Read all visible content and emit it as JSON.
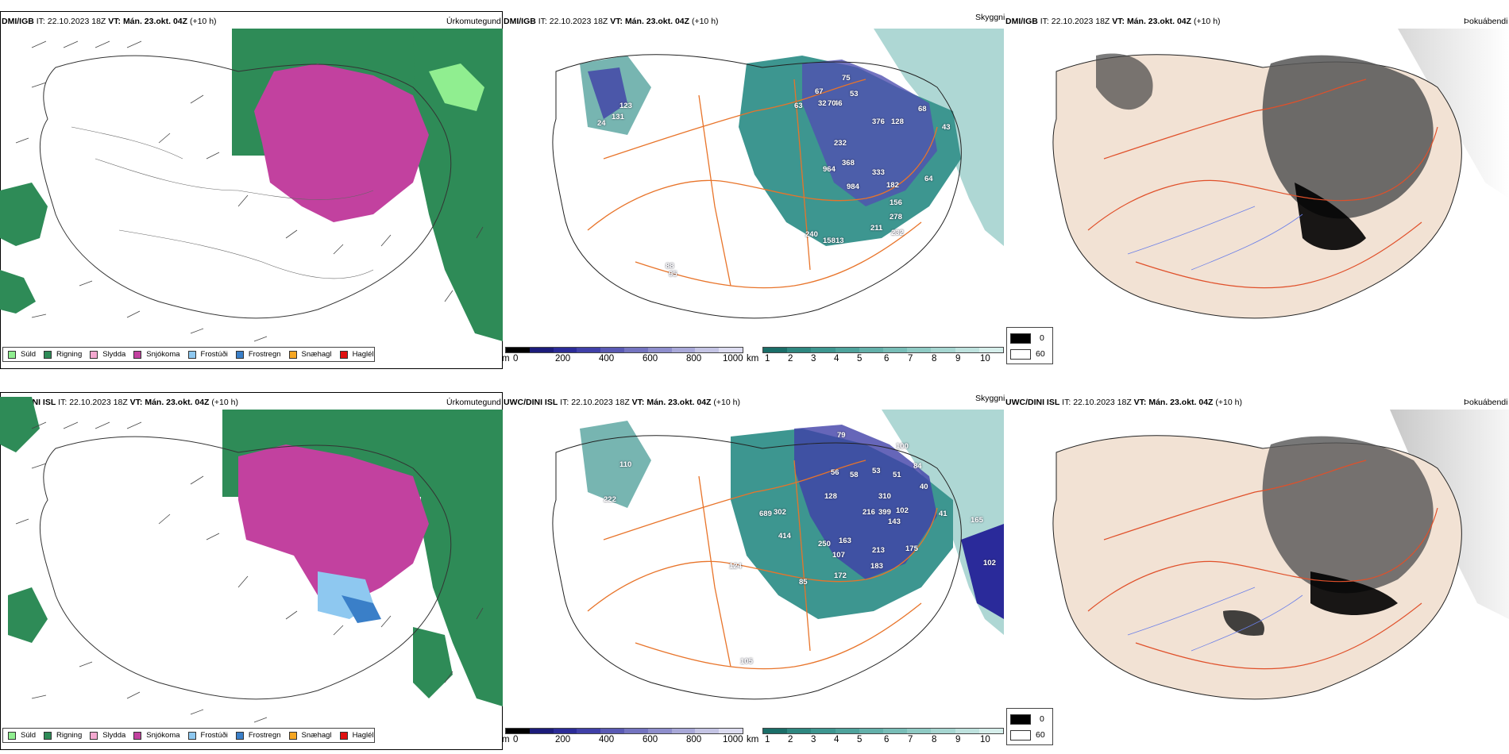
{
  "rows": [
    {
      "model": "DMI/IGB",
      "issue_label": "IT:",
      "issue_time": "22.10.2023 18Z",
      "valid_label": "VT:",
      "valid_time": "Mán. 23.okt. 04Z",
      "lead": "(+10 h)",
      "panel_titles": {
        "precip": "Úrkomutegund",
        "visibility": "Skyggni",
        "fog": "Þokuábendi"
      },
      "ceiling_labels": [
        "75",
        "67",
        "53",
        "63",
        "46",
        "32",
        "70",
        "128",
        "376",
        "43",
        "68",
        "232",
        "368",
        "964",
        "984",
        "333",
        "182",
        "64",
        "156",
        "278",
        "211",
        "232",
        "158",
        "240",
        "13",
        "123",
        "131",
        "24",
        "88",
        "95"
      ],
      "fog_values": [
        "0",
        "60"
      ]
    },
    {
      "model": "UWC/DINI ISL",
      "issue_label": "IT:",
      "issue_time": "22.10.2023 18Z",
      "valid_label": "VT:",
      "valid_time": "Mán. 23.okt. 04Z",
      "lead": "(+10 h)",
      "panel_titles": {
        "precip": "Úrkomutegund",
        "visibility": "Skyggni",
        "fog": "Þokuábendi"
      },
      "ceiling_labels": [
        "79",
        "100",
        "84",
        "53",
        "58",
        "56",
        "51",
        "40",
        "128",
        "310",
        "399",
        "216",
        "102",
        "143",
        "689",
        "302",
        "414",
        "250",
        "163",
        "107",
        "213",
        "183",
        "175",
        "172",
        "85",
        "41",
        "165",
        "102",
        "124",
        "105",
        "110",
        "222"
      ],
      "fog_values": [
        "0",
        "60"
      ]
    }
  ],
  "precip_legend": [
    {
      "label": "Súld",
      "color": "#90ee90"
    },
    {
      "label": "Rigning",
      "color": "#2e8b57"
    },
    {
      "label": "Slydda",
      "color": "#f4a8d0"
    },
    {
      "label": "Snjókoma",
      "color": "#c2419f"
    },
    {
      "label": "Frostúði",
      "color": "#8ec8f0"
    },
    {
      "label": "Frostregn",
      "color": "#3a7fc8"
    },
    {
      "label": "Snæhagl",
      "color": "#f5a623"
    },
    {
      "label": "Haglél",
      "color": "#e01010"
    }
  ],
  "ceiling_bar": {
    "unit": "m",
    "ticks": [
      "0",
      "200",
      "400",
      "600",
      "800",
      "1000"
    ],
    "colors": [
      "#000000",
      "#1c1c7a",
      "#2b2b98",
      "#4040a8",
      "#5a5ab4",
      "#7474c0",
      "#8e8ecc",
      "#a8a8d8",
      "#c4c4e4",
      "#dcdcf0"
    ]
  },
  "visibility_bar": {
    "unit": "km",
    "ticks": [
      "1",
      "2",
      "3",
      "4",
      "5",
      "6",
      "7",
      "8",
      "9",
      "10"
    ],
    "colors": [
      "#1a6e68",
      "#2e8780",
      "#3d9690",
      "#4ea39c",
      "#63b0aa",
      "#78bdb7",
      "#8fcac4",
      "#a6d6d1",
      "#bee2de",
      "#d6eeeb"
    ]
  },
  "colors": {
    "rain": "#2e8b57",
    "snow": "#c2419f",
    "drizzle": "#90ee90",
    "freezing_drizzle": "#8ec8f0",
    "freezing_rain": "#3a7fc8",
    "teal": "#3d9690",
    "navy": "#2a2a9a",
    "road": "#e8742a",
    "land_fog": "#f2e2d4"
  }
}
